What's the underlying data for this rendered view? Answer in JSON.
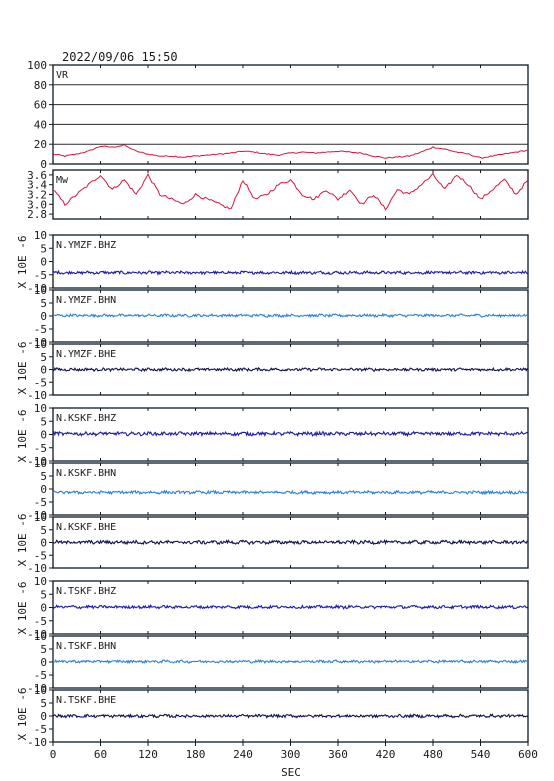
{
  "title": "2022/09/06  15:50",
  "x_axis": {
    "label": "SEC",
    "range": [
      0,
      600
    ],
    "ticks": [
      "0",
      "60",
      "120",
      "180",
      "240",
      "300",
      "360",
      "420",
      "480",
      "540",
      "600"
    ]
  },
  "chart_data": [
    {
      "type": "line",
      "panel_label": "VR",
      "ylim": [
        0,
        100
      ],
      "yticks": [
        "0",
        "20",
        "40",
        "60",
        "80",
        "100"
      ],
      "grid": "horizontal",
      "color": "#dc143c",
      "series": [
        {
          "x": [
            0,
            15,
            30,
            45,
            60,
            75,
            90,
            105,
            120,
            135,
            150,
            165,
            180,
            195,
            210,
            225,
            240,
            255,
            270,
            285,
            300,
            315,
            330,
            345,
            360,
            375,
            390,
            405,
            420,
            435,
            450,
            465,
            480,
            495,
            510,
            525,
            540,
            555,
            570,
            585,
            600
          ],
          "values": [
            10,
            8,
            10,
            13,
            18,
            17,
            19,
            13,
            10,
            8,
            8,
            7,
            8,
            9,
            10,
            11,
            13,
            12,
            10,
            9,
            11,
            12,
            11,
            12,
            13,
            12,
            11,
            8,
            6,
            7,
            8,
            12,
            17,
            15,
            12,
            10,
            6,
            8,
            10,
            12,
            14
          ]
        }
      ]
    },
    {
      "type": "line",
      "panel_label": "Mw",
      "ylim": [
        2.7,
        3.7
      ],
      "yticks": [
        "2.8",
        "3.0",
        "3.2",
        "3.4",
        "3.6"
      ],
      "color": "#dc143c",
      "series": [
        {
          "x": [
            0,
            15,
            30,
            45,
            60,
            75,
            90,
            105,
            120,
            135,
            150,
            165,
            180,
            195,
            210,
            225,
            240,
            255,
            270,
            285,
            300,
            315,
            330,
            345,
            360,
            375,
            390,
            405,
            420,
            435,
            450,
            465,
            480,
            495,
            510,
            525,
            540,
            555,
            570,
            585,
            600
          ],
          "values": [
            3.3,
            3.0,
            3.2,
            3.4,
            3.6,
            3.3,
            3.5,
            3.2,
            3.6,
            3.2,
            3.1,
            3.0,
            3.2,
            3.1,
            3.0,
            2.9,
            3.5,
            3.1,
            3.2,
            3.4,
            3.5,
            3.2,
            3.1,
            3.3,
            3.1,
            3.3,
            3.0,
            3.2,
            2.9,
            3.3,
            3.2,
            3.4,
            3.6,
            3.3,
            3.6,
            3.4,
            3.1,
            3.3,
            3.5,
            3.2,
            3.5
          ]
        }
      ]
    },
    {
      "type": "line",
      "panel_label": "N.YMZF.BHZ",
      "ylim": [
        -10,
        10
      ],
      "yticks": [
        "-10",
        "-5",
        "0",
        "5",
        "10"
      ],
      "color": "#1a1aaa",
      "baseline": -4.2,
      "noise": 0.5
    },
    {
      "type": "line",
      "panel_label": "N.YMZF.BHN",
      "ylim": [
        -10,
        10
      ],
      "yticks": [
        "-10",
        "-5",
        "0",
        "5",
        "10"
      ],
      "color": "#2f7fd6",
      "baseline": 0.2,
      "noise": 0.45
    },
    {
      "type": "line",
      "panel_label": "N.YMZF.BHE",
      "ylim": [
        -10,
        10
      ],
      "yticks": [
        "-10",
        "-5",
        "0",
        "5",
        "10"
      ],
      "color": "#101050",
      "baseline": 0.0,
      "noise": 0.5
    },
    {
      "type": "line",
      "panel_label": "N.KSKF.BHZ",
      "ylim": [
        -10,
        10
      ],
      "yticks": [
        "-10",
        "-5",
        "0",
        "5",
        "10"
      ],
      "color": "#1a1aaa",
      "baseline": 0.3,
      "noise": 0.6
    },
    {
      "type": "line",
      "panel_label": "N.KSKF.BHN",
      "ylim": [
        -10,
        10
      ],
      "yticks": [
        "-10",
        "-5",
        "0",
        "5",
        "10"
      ],
      "color": "#2f7fd6",
      "baseline": -1.3,
      "noise": 0.5
    },
    {
      "type": "line",
      "panel_label": "N.KSKF.BHE",
      "ylim": [
        -10,
        10
      ],
      "yticks": [
        "-10",
        "-5",
        "0",
        "5",
        "10"
      ],
      "color": "#101050",
      "baseline": 0.1,
      "noise": 0.6
    },
    {
      "type": "line",
      "panel_label": "N.TSKF.BHZ",
      "ylim": [
        -10,
        10
      ],
      "yticks": [
        "-10",
        "-5",
        "0",
        "5",
        "10"
      ],
      "color": "#1a1aaa",
      "baseline": 0.2,
      "noise": 0.5
    },
    {
      "type": "line",
      "panel_label": "N.TSKF.BHN",
      "ylim": [
        -10,
        10
      ],
      "yticks": [
        "-10",
        "-5",
        "0",
        "5",
        "10"
      ],
      "color": "#2f7fd6",
      "baseline": 0.2,
      "noise": 0.45
    },
    {
      "type": "line",
      "panel_label": "N.TSKF.BHE",
      "ylim": [
        -10,
        10
      ],
      "yticks": [
        "-10",
        "-5",
        "0",
        "5",
        "10"
      ],
      "color": "#101050",
      "baseline": 0.0,
      "noise": 0.5
    }
  ],
  "velocity_ylabel": "X 10E -6",
  "velocity_group_ylabels": [
    "X 10E -6",
    "X 10E -6",
    "X 10E -6",
    "X 10E -6"
  ]
}
